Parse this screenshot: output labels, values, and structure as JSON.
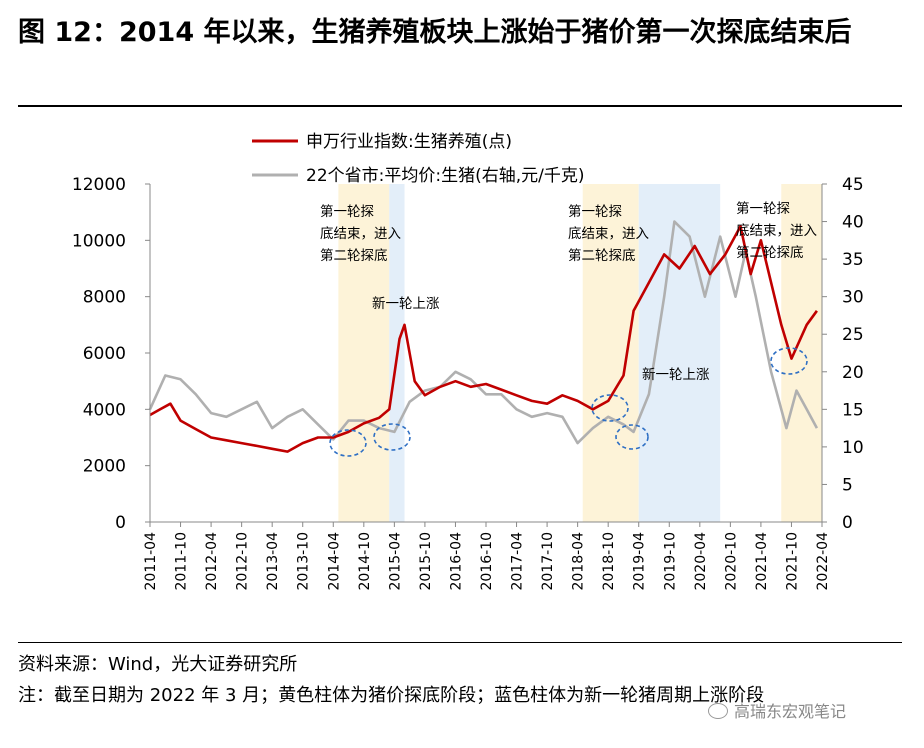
{
  "title": "图 12：2014 年以来，生猪养殖板块上涨始于猪价第一次探底结束后",
  "source": "资料来源：Wind，光大证券研究所",
  "note": "注：截至日期为 2022 年 3 月；黄色柱体为猪价探底阶段；蓝色柱体为新一轮猪周期上涨阶段",
  "watermark": "高瑞东宏观笔记",
  "chart_data": {
    "type": "line",
    "x_ticks": [
      "2011-04",
      "2011-10",
      "2012-04",
      "2012-10",
      "2013-04",
      "2013-10",
      "2014-04",
      "2014-10",
      "2015-04",
      "2015-10",
      "2016-04",
      "2016-10",
      "2017-04",
      "2017-10",
      "2018-04",
      "2018-10",
      "2019-04",
      "2019-10",
      "2020-04",
      "2020-10",
      "2021-04",
      "2021-10",
      "2022-04"
    ],
    "y_left": {
      "min": 0,
      "max": 12000,
      "ticks": [
        0,
        2000,
        4000,
        6000,
        8000,
        10000,
        12000
      ]
    },
    "y_right": {
      "min": 0,
      "max": 45,
      "ticks": [
        0,
        5,
        10,
        15,
        20,
        25,
        30,
        35,
        40,
        45
      ]
    },
    "grid": false,
    "legend_position": "top",
    "series": [
      {
        "name": "申万行业指数:生猪养殖(点)",
        "axis": "left",
        "color": "#c00000",
        "points": [
          [
            "2011-04",
            3800
          ],
          [
            "2011-06",
            4000
          ],
          [
            "2011-08",
            4200
          ],
          [
            "2011-10",
            3600
          ],
          [
            "2012-01",
            3300
          ],
          [
            "2012-04",
            3000
          ],
          [
            "2012-07",
            2900
          ],
          [
            "2012-10",
            2800
          ],
          [
            "2013-01",
            2700
          ],
          [
            "2013-04",
            2600
          ],
          [
            "2013-07",
            2500
          ],
          [
            "2013-10",
            2800
          ],
          [
            "2014-01",
            3000
          ],
          [
            "2014-04",
            3000
          ],
          [
            "2014-07",
            3200
          ],
          [
            "2014-10",
            3500
          ],
          [
            "2015-01",
            3700
          ],
          [
            "2015-03",
            4000
          ],
          [
            "2015-05",
            6500
          ],
          [
            "2015-06",
            7000
          ],
          [
            "2015-08",
            5000
          ],
          [
            "2015-10",
            4500
          ],
          [
            "2016-01",
            4800
          ],
          [
            "2016-04",
            5000
          ],
          [
            "2016-07",
            4800
          ],
          [
            "2016-10",
            4900
          ],
          [
            "2017-01",
            4700
          ],
          [
            "2017-04",
            4500
          ],
          [
            "2017-07",
            4300
          ],
          [
            "2017-10",
            4200
          ],
          [
            "2018-01",
            4500
          ],
          [
            "2018-04",
            4300
          ],
          [
            "2018-07",
            4000
          ],
          [
            "2018-10",
            4300
          ],
          [
            "2019-01",
            5200
          ],
          [
            "2019-03",
            7500
          ],
          [
            "2019-06",
            8500
          ],
          [
            "2019-09",
            9500
          ],
          [
            "2019-12",
            9000
          ],
          [
            "2020-03",
            9800
          ],
          [
            "2020-06",
            8800
          ],
          [
            "2020-09",
            9500
          ],
          [
            "2020-12",
            10500
          ],
          [
            "2021-02",
            8800
          ],
          [
            "2021-04",
            10000
          ],
          [
            "2021-06",
            8500
          ],
          [
            "2021-08",
            7000
          ],
          [
            "2021-10",
            5800
          ],
          [
            "2022-01",
            7000
          ],
          [
            "2022-03",
            7500
          ]
        ]
      },
      {
        "name": "22个省市:平均价:生猪(右轴,元/千克)",
        "axis": "right",
        "color": "#b0b0b0",
        "points": [
          [
            "2011-04",
            15
          ],
          [
            "2011-07",
            19.5
          ],
          [
            "2011-10",
            19
          ],
          [
            "2012-01",
            17
          ],
          [
            "2012-04",
            14.5
          ],
          [
            "2012-07",
            14
          ],
          [
            "2012-10",
            15
          ],
          [
            "2013-01",
            16
          ],
          [
            "2013-04",
            12.5
          ],
          [
            "2013-07",
            14
          ],
          [
            "2013-10",
            15
          ],
          [
            "2014-01",
            13
          ],
          [
            "2014-04",
            11
          ],
          [
            "2014-07",
            13.5
          ],
          [
            "2014-10",
            13.5
          ],
          [
            "2015-01",
            12.5
          ],
          [
            "2015-04",
            12
          ],
          [
            "2015-07",
            16
          ],
          [
            "2015-10",
            17.5
          ],
          [
            "2016-01",
            18
          ],
          [
            "2016-04",
            20
          ],
          [
            "2016-07",
            19
          ],
          [
            "2016-10",
            17
          ],
          [
            "2017-01",
            17
          ],
          [
            "2017-04",
            15
          ],
          [
            "2017-07",
            14
          ],
          [
            "2017-10",
            14.5
          ],
          [
            "2018-01",
            14
          ],
          [
            "2018-04",
            10.5
          ],
          [
            "2018-07",
            12.5
          ],
          [
            "2018-10",
            14
          ],
          [
            "2019-01",
            13
          ],
          [
            "2019-03",
            12
          ],
          [
            "2019-06",
            17
          ],
          [
            "2019-09",
            30
          ],
          [
            "2019-11",
            40
          ],
          [
            "2020-02",
            38
          ],
          [
            "2020-05",
            30
          ],
          [
            "2020-08",
            38
          ],
          [
            "2020-11",
            30
          ],
          [
            "2021-01",
            36
          ],
          [
            "2021-03",
            30
          ],
          [
            "2021-06",
            20
          ],
          [
            "2021-09",
            12.5
          ],
          [
            "2021-11",
            17.5
          ],
          [
            "2022-01",
            15
          ],
          [
            "2022-03",
            12.5
          ]
        ]
      }
    ],
    "shaded_periods": [
      {
        "type": "yellow",
        "start": "2014-05",
        "end": "2015-03"
      },
      {
        "type": "blue",
        "start": "2015-03",
        "end": "2015-06"
      },
      {
        "type": "yellow",
        "start": "2018-05",
        "end": "2019-04"
      },
      {
        "type": "blue",
        "start": "2019-04",
        "end": "2020-08"
      },
      {
        "type": "yellow",
        "start": "2021-08",
        "end": "2022-04"
      }
    ],
    "annotations": [
      {
        "text": "第一轮探底结束，进入第二轮探底",
        "x": "2014-06"
      },
      {
        "text": "新一轮上涨",
        "x": "2015-05"
      },
      {
        "text": "第一轮探底结束，进入第二轮探底",
        "x": "2018-06"
      },
      {
        "text": "新一轮上涨",
        "x": "2019-05"
      },
      {
        "text": "第一轮探底结束，进入第二轮探底",
        "x": "2020-12"
      }
    ]
  }
}
